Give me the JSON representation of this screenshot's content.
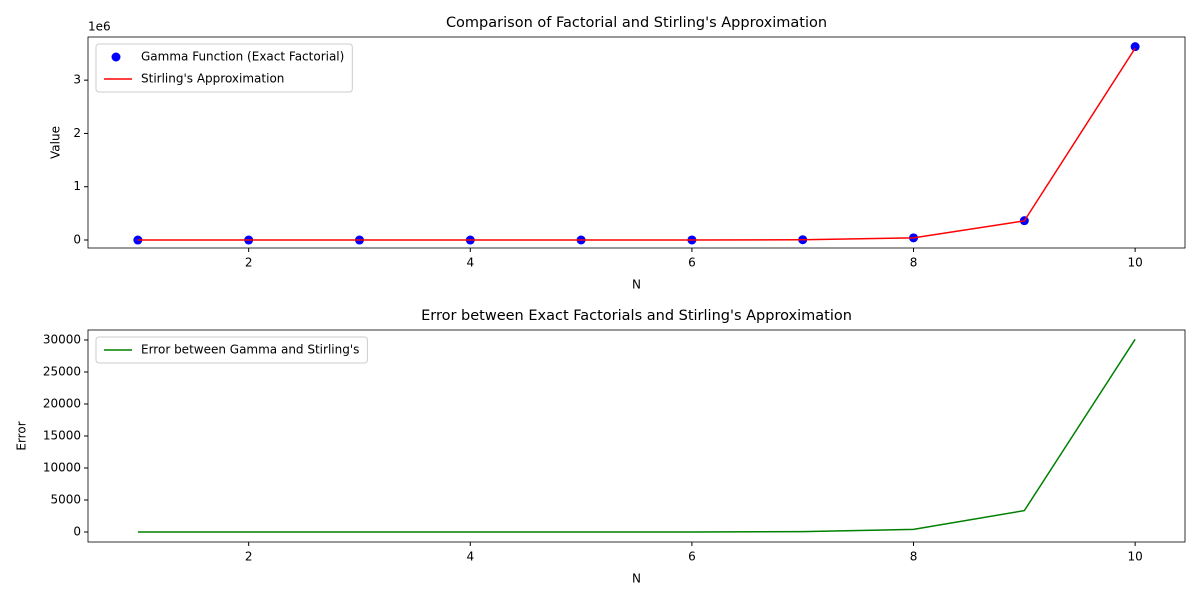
{
  "chart_data": [
    {
      "type": "line",
      "title": "Comparison of Factorial and Stirling's Approximation",
      "x_label": "N",
      "y_label": "Value",
      "y_offset_label": "1e6",
      "x": [
        1,
        2,
        3,
        4,
        5,
        6,
        7,
        8,
        9,
        10
      ],
      "series": [
        {
          "name": "Gamma Function (Exact Factorial)",
          "type": "scatter",
          "color": "#0000ff",
          "values": [
            1,
            2,
            6,
            24,
            120,
            720,
            5040,
            40320,
            362880,
            3628800
          ]
        },
        {
          "name": "Stirling's Approximation",
          "type": "line",
          "color": "#ff0000",
          "values": [
            0.922,
            1.919,
            5.836,
            23.506,
            118.019,
            710.078,
            4980.396,
            39902.395,
            359536.873,
            3598695.619
          ]
        }
      ],
      "xlim": [
        0.55,
        10.45
      ],
      "xticks": [
        2,
        4,
        6,
        8,
        10
      ],
      "ylim": [
        -150000,
        3810000
      ],
      "yticks": [
        {
          "value": 0,
          "label": "0"
        },
        {
          "value": 1000000,
          "label": "1"
        },
        {
          "value": 2000000,
          "label": "2"
        },
        {
          "value": 3000000,
          "label": "3"
        }
      ],
      "legend": "upper left",
      "grid": false
    },
    {
      "type": "line",
      "title": "Error between Exact Factorials and Stirling's Approximation",
      "x_label": "N",
      "y_label": "Error",
      "x": [
        1,
        2,
        3,
        4,
        5,
        6,
        7,
        8,
        9,
        10
      ],
      "series": [
        {
          "name": "Error between Gamma and Stirling's",
          "type": "line",
          "color": "#008000",
          "values": [
            0.078,
            0.081,
            0.164,
            0.494,
            1.981,
            9.922,
            59.604,
            417.605,
            3343.127,
            30104.381
          ]
        }
      ],
      "xlim": [
        0.55,
        10.45
      ],
      "xticks": [
        2,
        4,
        6,
        8,
        10
      ],
      "ylim": [
        -1560,
        31560
      ],
      "yticks": [
        0,
        5000,
        10000,
        15000,
        20000,
        25000,
        30000
      ],
      "legend": "upper left",
      "grid": false
    }
  ]
}
